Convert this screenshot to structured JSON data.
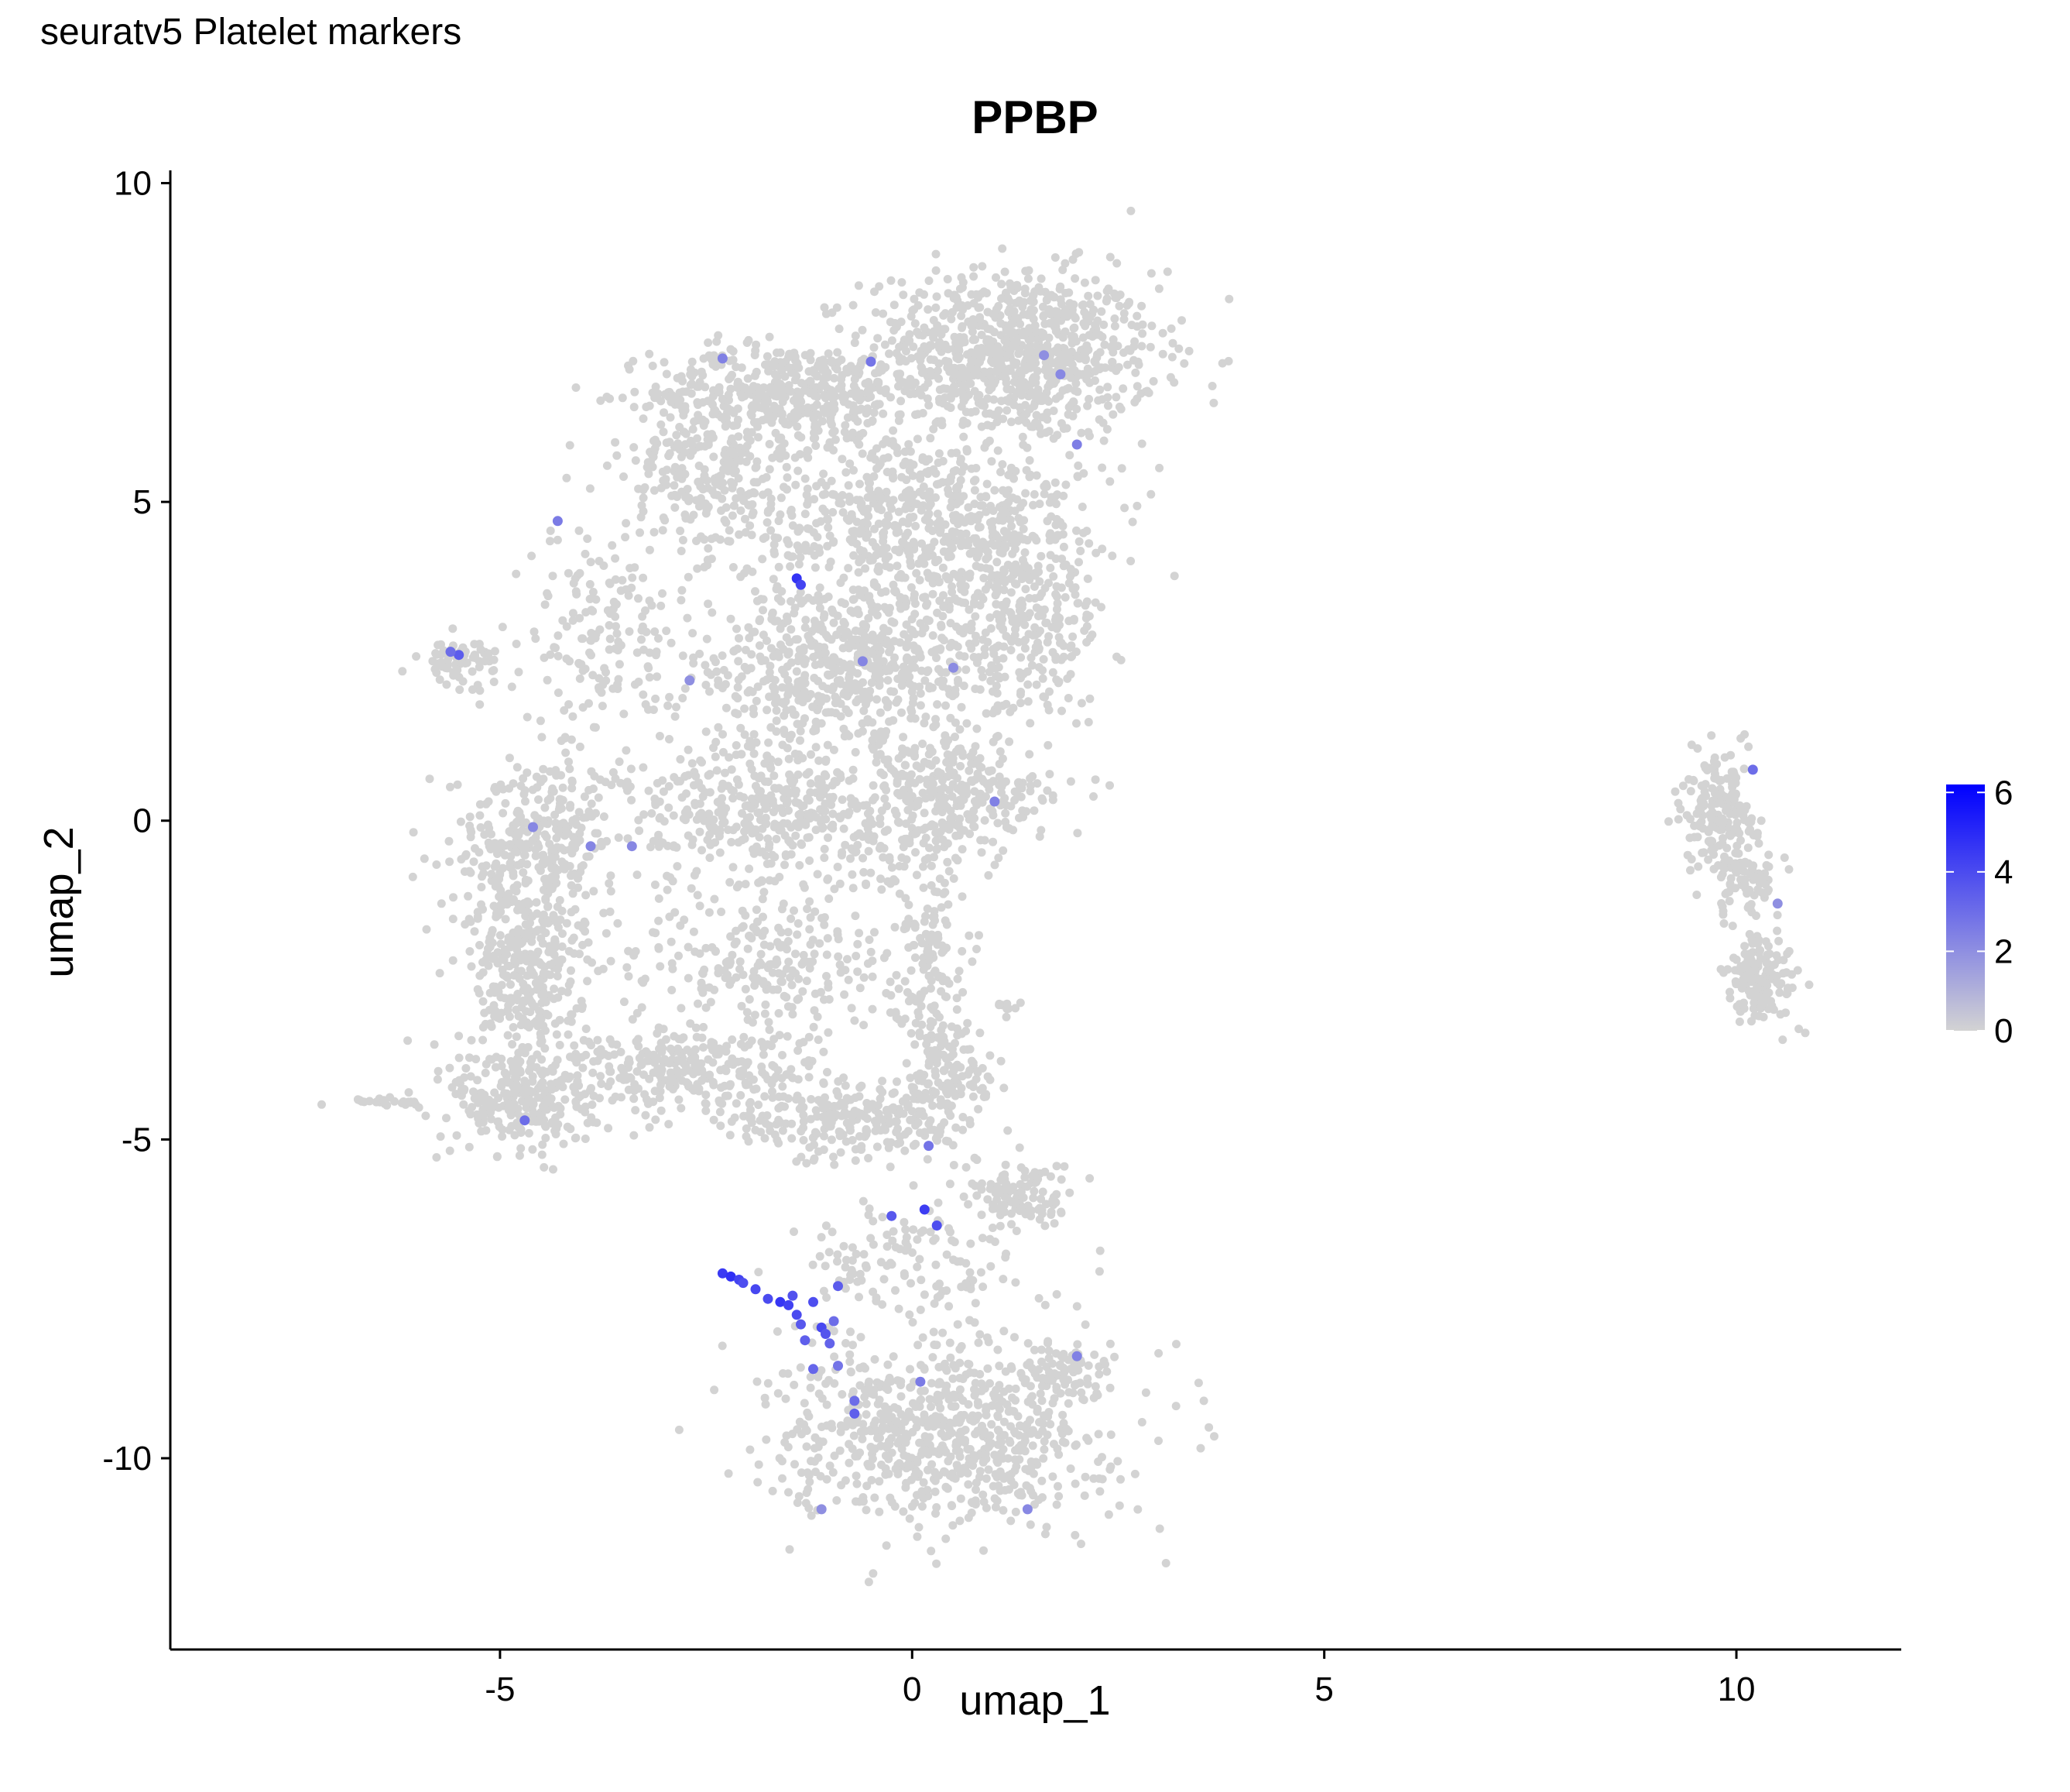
{
  "page_title": "seuratv5 Platelet markers",
  "colors": {
    "low": "#d3d3d3",
    "high": "#0000ff",
    "axis": "#000000"
  },
  "chart_data": {
    "type": "scatter",
    "title": "PPBP",
    "xlabel": "umap_1",
    "ylabel": "umap_2",
    "xlim": [
      -9.0,
      12.0
    ],
    "ylim": [
      -13.0,
      10.2
    ],
    "x_ticks": [
      -5,
      0,
      5,
      10
    ],
    "x_tick_labels": [
      "-5",
      "0",
      "5",
      "10"
    ],
    "y_ticks": [
      -10,
      -5,
      0,
      5,
      10
    ],
    "y_tick_labels": [
      "-10",
      "-5",
      "0",
      "5",
      "10"
    ],
    "grid": false,
    "legend": {
      "type": "colorbar",
      "placement": "right",
      "ticks": [
        0,
        2,
        4,
        6
      ],
      "tick_labels": [
        "0",
        "2",
        "4",
        "6"
      ],
      "range": [
        0,
        6.2
      ]
    },
    "regions": [
      {
        "cx": 1.2,
        "cy": 7.3,
        "rx": 1.6,
        "ry": 1.2,
        "n": 900
      },
      {
        "cx": -1.5,
        "cy": 6.7,
        "rx": 1.5,
        "ry": 0.7,
        "n": 420
      },
      {
        "cx": -2.5,
        "cy": 5.5,
        "rx": 0.9,
        "ry": 1.3,
        "n": 260
      },
      {
        "cx": 0.0,
        "cy": 4.7,
        "rx": 1.9,
        "ry": 1.3,
        "n": 620
      },
      {
        "cx": -0.8,
        "cy": 2.4,
        "rx": 2.0,
        "ry": 1.2,
        "n": 620
      },
      {
        "cx": 1.2,
        "cy": 3.2,
        "rx": 1.1,
        "ry": 1.5,
        "n": 320
      },
      {
        "cx": -3.8,
        "cy": 2.9,
        "rx": 0.8,
        "ry": 1.5,
        "n": 150
      },
      {
        "cx": -5.5,
        "cy": 2.5,
        "rx": 0.45,
        "ry": 0.35,
        "n": 70
      },
      {
        "cx": -1.6,
        "cy": 0.1,
        "rx": 1.9,
        "ry": 1.1,
        "n": 520
      },
      {
        "cx": 0.6,
        "cy": 0.4,
        "rx": 1.0,
        "ry": 0.8,
        "n": 240
      },
      {
        "cx": -4.6,
        "cy": -0.4,
        "rx": 0.9,
        "ry": 1.2,
        "n": 320
      },
      {
        "cx": -4.7,
        "cy": -2.4,
        "rx": 0.6,
        "ry": 1.3,
        "n": 300
      },
      {
        "cx": -4.7,
        "cy": -4.4,
        "rx": 0.8,
        "ry": 0.8,
        "n": 260
      },
      {
        "cx": -1.8,
        "cy": -2.2,
        "rx": 1.6,
        "ry": 1.0,
        "n": 260
      },
      {
        "cx": 0.2,
        "cy": -2.0,
        "rx": 0.4,
        "ry": 1.6,
        "n": 130
      },
      {
        "cx": -2.8,
        "cy": -3.9,
        "rx": 1.5,
        "ry": 0.6,
        "n": 280
      },
      {
        "cx": -0.7,
        "cy": -4.7,
        "rx": 1.4,
        "ry": 0.6,
        "n": 260
      },
      {
        "cx": 0.5,
        "cy": -3.9,
        "rx": 0.5,
        "ry": 0.7,
        "n": 110
      },
      {
        "cx": 1.3,
        "cy": -5.9,
        "rx": 0.6,
        "ry": 0.5,
        "n": 120
      },
      {
        "cx": 0.0,
        "cy": -7.0,
        "rx": 1.3,
        "ry": 0.9,
        "n": 130
      },
      {
        "cx": 0.4,
        "cy": -9.6,
        "rx": 1.8,
        "ry": 1.3,
        "n": 760
      },
      {
        "cx": 1.9,
        "cy": -8.6,
        "rx": 0.4,
        "ry": 0.4,
        "n": 60
      },
      {
        "cx": 9.8,
        "cy": 0.2,
        "rx": 0.4,
        "ry": 0.8,
        "n": 170
      },
      {
        "cx": 10.1,
        "cy": -0.9,
        "rx": 0.45,
        "ry": 0.6,
        "n": 90
      },
      {
        "cx": 10.3,
        "cy": -2.5,
        "rx": 0.4,
        "ry": 0.6,
        "n": 150
      },
      {
        "cx": -6.4,
        "cy": -4.4,
        "rx": 0.45,
        "ry": 0.06,
        "n": 24
      },
      {
        "cx": 1.2,
        "cy": -2.9,
        "rx": 0.15,
        "ry": 0.05,
        "n": 8
      }
    ],
    "expressing_cells": [
      {
        "x": -2.3,
        "y": -7.1,
        "value": 4.5
      },
      {
        "x": -2.2,
        "y": -7.15,
        "value": 4.8
      },
      {
        "x": -2.1,
        "y": -7.2,
        "value": 4.2
      },
      {
        "x": -2.05,
        "y": -7.25,
        "value": 3.9
      },
      {
        "x": -1.9,
        "y": -7.35,
        "value": 4.1
      },
      {
        "x": -1.75,
        "y": -7.5,
        "value": 4.0
      },
      {
        "x": -1.6,
        "y": -7.55,
        "value": 4.6
      },
      {
        "x": -1.5,
        "y": -7.6,
        "value": 4.3
      },
      {
        "x": -1.45,
        "y": -7.45,
        "value": 3.8
      },
      {
        "x": -1.4,
        "y": -7.75,
        "value": 4.0
      },
      {
        "x": -1.35,
        "y": -7.9,
        "value": 3.6
      },
      {
        "x": -1.3,
        "y": -8.15,
        "value": 3.4
      },
      {
        "x": -1.2,
        "y": -7.55,
        "value": 3.9
      },
      {
        "x": -1.1,
        "y": -7.95,
        "value": 4.1
      },
      {
        "x": -1.05,
        "y": -8.05,
        "value": 3.7
      },
      {
        "x": -1.0,
        "y": -8.2,
        "value": 3.3
      },
      {
        "x": -0.9,
        "y": -7.3,
        "value": 3.5
      },
      {
        "x": -0.95,
        "y": -7.85,
        "value": 3.0
      },
      {
        "x": -1.2,
        "y": -8.6,
        "value": 3.2
      },
      {
        "x": -0.9,
        "y": -8.55,
        "value": 2.8
      },
      {
        "x": -0.7,
        "y": -9.3,
        "value": 3.4
      },
      {
        "x": -0.7,
        "y": -9.1,
        "value": 3.0
      },
      {
        "x": 0.15,
        "y": -6.1,
        "value": 4.4
      },
      {
        "x": -0.25,
        "y": -6.2,
        "value": 3.6
      },
      {
        "x": 0.3,
        "y": -6.35,
        "value": 3.9
      },
      {
        "x": 0.2,
        "y": -5.1,
        "value": 2.8
      },
      {
        "x": -1.4,
        "y": 3.8,
        "value": 4.7
      },
      {
        "x": -1.35,
        "y": 3.7,
        "value": 4.2
      },
      {
        "x": -5.5,
        "y": 2.6,
        "value": 3.5
      },
      {
        "x": -5.6,
        "y": 2.65,
        "value": 3.0
      },
      {
        "x": -4.3,
        "y": 4.7,
        "value": 2.6
      },
      {
        "x": -4.7,
        "y": -4.7,
        "value": 3.0
      },
      {
        "x": -3.4,
        "y": -0.4,
        "value": 2.2
      },
      {
        "x": -3.9,
        "y": -0.4,
        "value": 2.3
      },
      {
        "x": -4.6,
        "y": -0.1,
        "value": 2.2
      },
      {
        "x": -2.3,
        "y": 7.25,
        "value": 2.4
      },
      {
        "x": -0.5,
        "y": 7.2,
        "value": 2.8
      },
      {
        "x": 1.8,
        "y": 7.0,
        "value": 2.2
      },
      {
        "x": 2.0,
        "y": 5.9,
        "value": 2.5
      },
      {
        "x": 1.6,
        "y": 7.3,
        "value": 2.0
      },
      {
        "x": 10.2,
        "y": 0.8,
        "value": 3.0
      },
      {
        "x": 10.5,
        "y": -1.3,
        "value": 2.0
      },
      {
        "x": 1.0,
        "y": 0.3,
        "value": 2.4
      },
      {
        "x": -2.7,
        "y": 2.2,
        "value": 2.0
      },
      {
        "x": -0.6,
        "y": 2.5,
        "value": 2.3
      },
      {
        "x": 0.5,
        "y": 2.4,
        "value": 2.1
      },
      {
        "x": 0.1,
        "y": -8.8,
        "value": 2.6
      },
      {
        "x": 1.4,
        "y": -10.8,
        "value": 2.2
      },
      {
        "x": -1.1,
        "y": -10.8,
        "value": 2.0
      },
      {
        "x": 2.0,
        "y": -8.4,
        "value": 2.4
      }
    ]
  }
}
